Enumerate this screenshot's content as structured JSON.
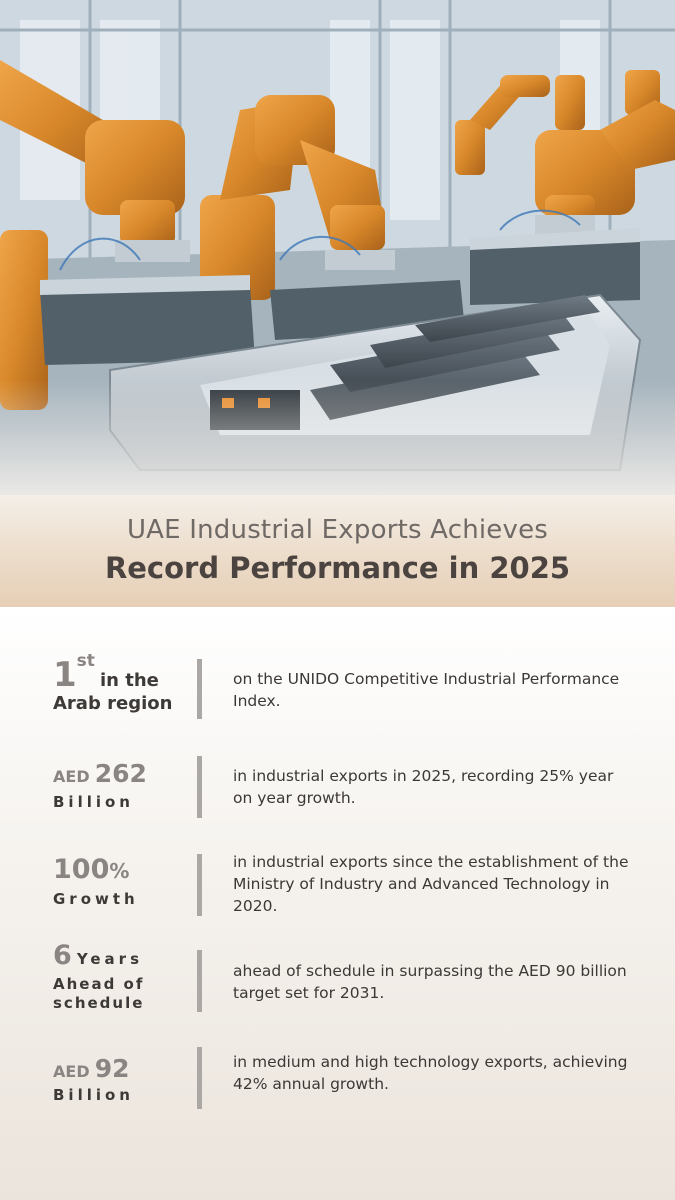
{
  "title": {
    "line1": "UAE Industrial Exports Achieves",
    "line2": "Record Performance in 2025"
  },
  "colors": {
    "robot_orange": "#d8882a",
    "accent_beige": "#e6cfb6",
    "divider_gray": "#aaa7a4",
    "number_gray": "#8a8583",
    "text_dark": "#3d3936"
  },
  "hero_image": {
    "icon": "factory-robot-arms-battery-assembly"
  },
  "stats": [
    {
      "figure": "1",
      "superscript": "st",
      "suffix": "in the",
      "label": "Arab region",
      "description": "on the UNIDO Competitive Industrial Performance Index."
    },
    {
      "prefix": "AED",
      "figure": "262",
      "label": "Billion",
      "description": "in industrial exports in 2025, recording 25% year on year growth."
    },
    {
      "figure": "100",
      "unit": "%",
      "label": "Growth",
      "description": "in industrial exports since the establishment of the Ministry of Industry and Advanced Technology in 2020."
    },
    {
      "figure": "6",
      "suffix": "Years",
      "label_line1": "Ahead of",
      "label_line2": "schedule",
      "description": "ahead of schedule in surpassing the AED 90 billion target set for 2031."
    },
    {
      "prefix": "AED",
      "figure": "92",
      "label": "Billion",
      "description": "in medium and high technology exports, achieving 42% annual growth."
    }
  ]
}
